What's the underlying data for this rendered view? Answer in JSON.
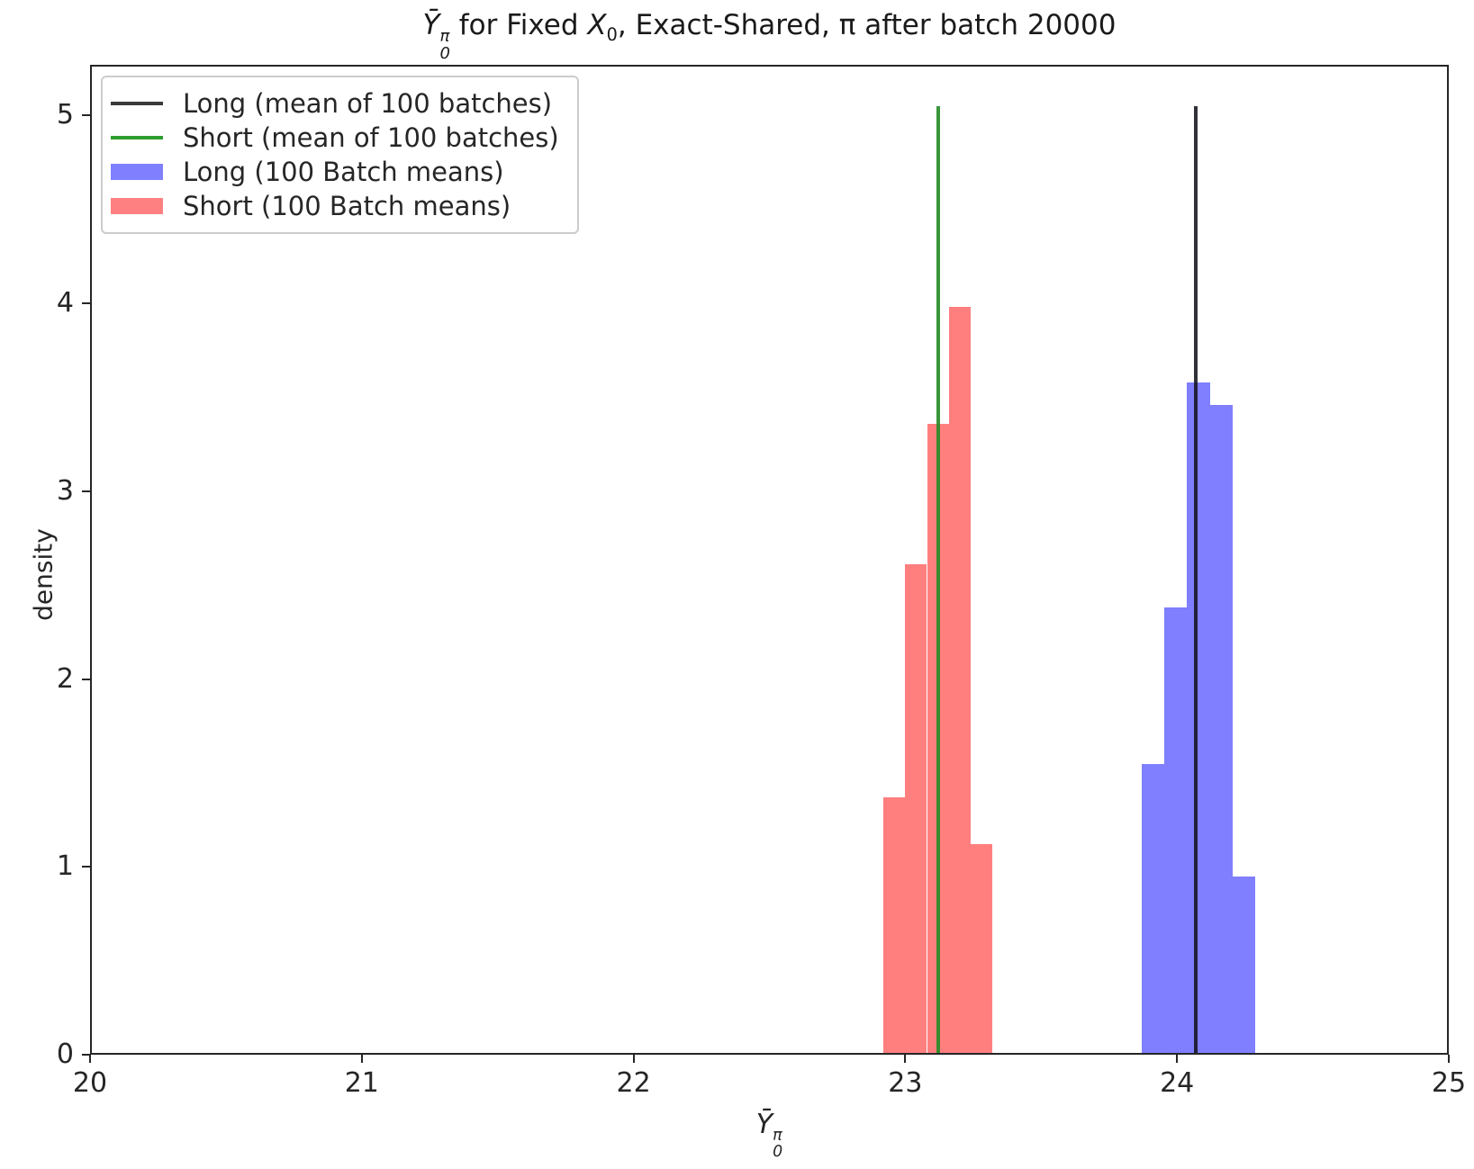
{
  "figure": {
    "title": {
      "y_sym": "Ȳ",
      "y_sup": "π",
      "y_sub": "0",
      "mid": " for Fixed ",
      "x_sym": "X",
      "x_sub": "0",
      "rest": ", Exact-Shared, π after batch 20000"
    },
    "xlabel": {
      "y_sym": "Ȳ",
      "y_sup": "π",
      "y_sub": "0"
    },
    "ylabel": "density"
  },
  "legend": {
    "position": "upper left",
    "items": [
      {
        "swatch": "line",
        "color": "#3a3a3a",
        "label": "Long (mean of 100 batches)"
      },
      {
        "swatch": "line",
        "color": "#2e9e2e",
        "label": "Short (mean of 100 batches)"
      },
      {
        "swatch": "patch",
        "color": "#8080ff",
        "label": "Long (100 Batch means)"
      },
      {
        "swatch": "patch",
        "color": "#ff8080",
        "label": "Short (100 Batch means)"
      }
    ]
  },
  "chart_data": {
    "type": "bar",
    "subtype": "histogram-density",
    "title": "Ȳ₀^π for Fixed X₀, Exact-Shared, π after batch 20000",
    "xlabel": "Ȳ₀^π",
    "ylabel": "density",
    "xlim": [
      20,
      25
    ],
    "ylim": [
      0,
      5.27
    ],
    "x_ticks": [
      "20",
      "21",
      "22",
      "23",
      "24",
      "25"
    ],
    "x_tick_values": [
      20,
      21,
      22,
      23,
      24,
      25
    ],
    "y_ticks": [
      "0",
      "1",
      "2",
      "3",
      "4",
      "5"
    ],
    "y_tick_values": [
      0,
      1,
      2,
      3,
      4,
      5
    ],
    "grid": false,
    "series": [
      {
        "name": "Short (100 Batch means)",
        "fill": "rgba(255,0,0,0.5)",
        "bin_edges": [
          22.92,
          23.0,
          23.08,
          23.16,
          23.24,
          23.32
        ],
        "densities": [
          1.37,
          2.61,
          3.36,
          3.98,
          1.12
        ]
      },
      {
        "name": "Long (100 Batch means)",
        "fill": "rgba(0,0,255,0.5)",
        "bin_edges": [
          23.87,
          23.954,
          24.037,
          24.121,
          24.204,
          24.288
        ],
        "densities": [
          1.55,
          2.38,
          3.58,
          3.46,
          0.95
        ]
      }
    ],
    "vlines": [
      {
        "name": "Short (mean of 100 batches)",
        "x": 23.12,
        "color": "rgba(38,139,38,0.9)",
        "y0": 0,
        "y1": 5.05
      },
      {
        "name": "Long (mean of 100 batches)",
        "x": 24.07,
        "color": "rgba(20,20,30,0.88)",
        "y0": 0,
        "y1": 5.05
      }
    ]
  }
}
